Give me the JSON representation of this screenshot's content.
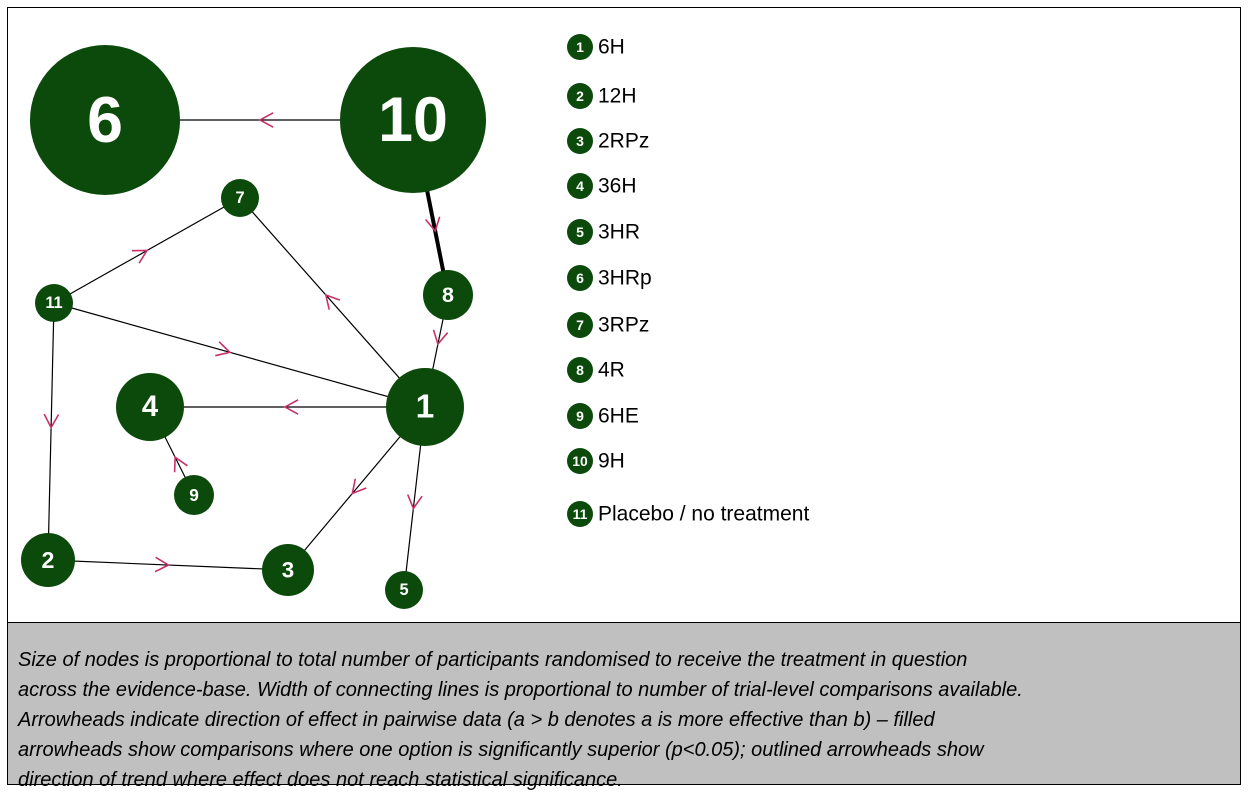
{
  "nodes": [
    {
      "label": "1"
    },
    {
      "label": "2"
    },
    {
      "label": "3"
    },
    {
      "label": "4"
    },
    {
      "label": "5"
    },
    {
      "label": "6"
    },
    {
      "label": "7"
    },
    {
      "label": "8"
    },
    {
      "label": "9"
    },
    {
      "label": "10"
    },
    {
      "label": "11"
    }
  ],
  "legend": [
    {
      "number": "1",
      "label": "6H"
    },
    {
      "number": "2",
      "label": "12H"
    },
    {
      "number": "3",
      "label": "2RPz"
    },
    {
      "number": "4",
      "label": "36H"
    },
    {
      "number": "5",
      "label": "3HR"
    },
    {
      "number": "6",
      "label": "3HRp"
    },
    {
      "number": "7",
      "label": "3RPz"
    },
    {
      "number": "8",
      "label": "4R"
    },
    {
      "number": "9",
      "label": "6HE"
    },
    {
      "number": "10",
      "label": "9H"
    },
    {
      "number": "11",
      "label": "Placebo / no treatment"
    }
  ],
  "caption": [
    "Size of nodes is proportional to total number of participants randomised to receive the treatment in question",
    "across the evidence-base. Width of connecting lines is proportional to number of trial-level comparisons available.",
    "Arrowheads indicate direction of effect in pairwise data (a > b denotes a is more effective than b) – filled",
    "arrowheads show comparisons where one option is significantly superior (p<0.05); outlined arrowheads show",
    "direction of trend where effect does not reach statistical significance."
  ]
}
